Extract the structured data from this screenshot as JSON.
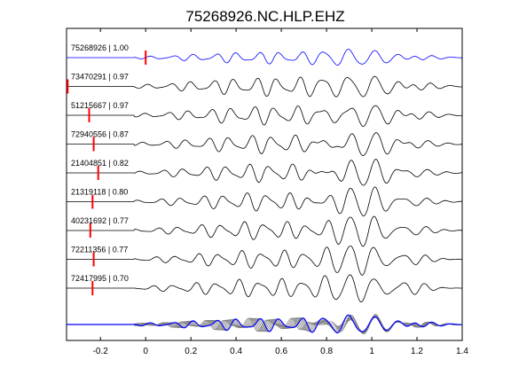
{
  "chart_data": {
    "type": "line",
    "title": "75268926.NC.HLP.EHZ",
    "xlabel": "",
    "ylabel": "",
    "xlim": [
      -0.35,
      1.4
    ],
    "xticks": [
      -0.2,
      0,
      0.2,
      0.4,
      0.6,
      0.8,
      1,
      1.2,
      1.4
    ],
    "xtick_labels": [
      "-0.2",
      "0",
      "0.2",
      "0.4",
      "0.6",
      "0.8",
      "1",
      "1.2",
      "1.4"
    ],
    "grid": false,
    "colors": {
      "reference": "#0000ff",
      "trace": "#000000",
      "stack_trace": "#808080",
      "pick": "#ff0000",
      "axes": "#000000"
    },
    "series": [
      {
        "name": "75268926 | 1.00",
        "pick_time": 0.0,
        "color": "#0000ff"
      },
      {
        "name": "73470291 | 0.97",
        "pick_time": -0.345,
        "color": "#000000"
      },
      {
        "name": "51215667 | 0.97",
        "pick_time": -0.25,
        "color": "#000000"
      },
      {
        "name": "72940556 | 0.87",
        "pick_time": -0.23,
        "color": "#000000"
      },
      {
        "name": "21404851 | 0.82",
        "pick_time": -0.21,
        "color": "#000000"
      },
      {
        "name": "21319118 | 0.80",
        "pick_time": -0.235,
        "color": "#000000"
      },
      {
        "name": "40231692 | 0.77",
        "pick_time": -0.245,
        "color": "#000000"
      },
      {
        "name": "72211356 | 0.77",
        "pick_time": -0.23,
        "color": "#000000"
      },
      {
        "name": "72417995 | 0.70",
        "pick_time": -0.235,
        "color": "#000000"
      }
    ]
  }
}
